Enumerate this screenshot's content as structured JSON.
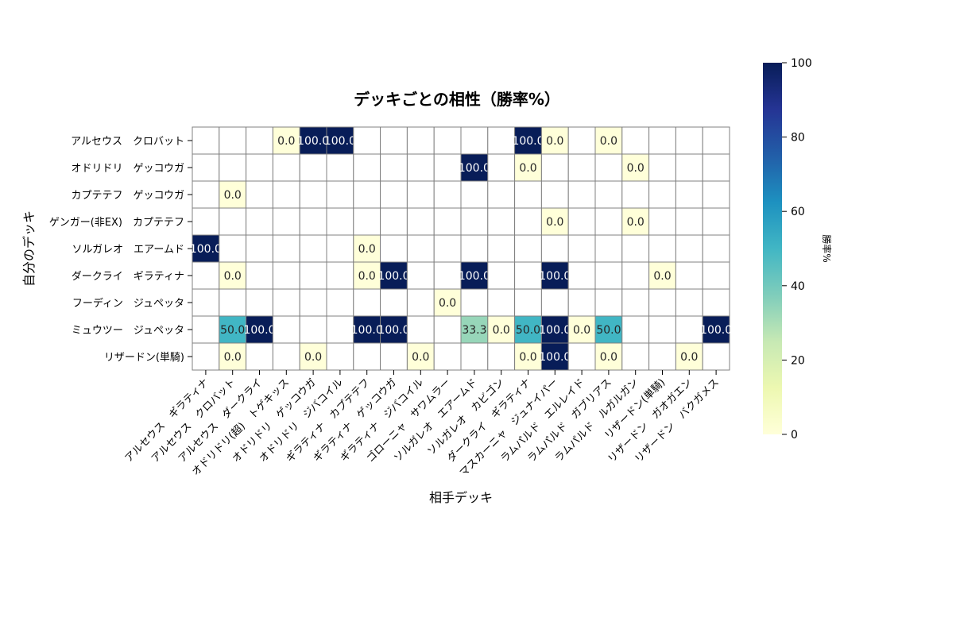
{
  "chart_data": {
    "type": "heatmap",
    "title": "デッキごとの相性（勝率%）",
    "xlabel": "相手デッキ",
    "ylabel": "自分のデッキ",
    "rows": [
      "アルセウス　クロバット",
      "オドリドリ　ゲッコウガ",
      "カプテテフ　ゲッコウガ",
      "ゲンガー(非EX)　カプテテフ",
      "ソルガレオ　エアームド",
      "ダークライ　ギラティナ",
      "フーディン　ジュペッタ",
      "ミュウツー　ジュペッタ",
      "リザードン(単騎)"
    ],
    "columns": [
      "アルセウス　ギラティナ",
      "アルセウス　クロバット",
      "アルセウス　ダークライ",
      "オドリドリ(超)　トゲキッス",
      "オドリドリ　ゲッコウガ",
      "オドリドリ　ジバコイル",
      "ギラティナ　カプテテフ",
      "ギラティナ　ゲッコウガ",
      "ギラティナ　ジバコイル",
      "ゴローニャ　サワムラー",
      "ソルガレオ　エアームド",
      "ソルガレオ　カビゴン",
      "ダークライ　ギラティナ",
      "マスカーニャ　ジュナイパー",
      "ラムパルド　エルレイド",
      "ラムパルド　ガブリアス",
      "ラムパルド　ルガルガン",
      "リザードン(単騎)",
      "リザードン　ガオガエン",
      "リザードン　バクガメス"
    ],
    "values": [
      [
        null,
        null,
        null,
        0.0,
        100.0,
        100.0,
        null,
        null,
        null,
        null,
        null,
        null,
        100.0,
        0.0,
        null,
        0.0,
        null,
        null,
        null,
        null
      ],
      [
        null,
        null,
        null,
        null,
        null,
        null,
        null,
        null,
        null,
        null,
        100.0,
        null,
        0.0,
        null,
        null,
        null,
        0.0,
        null,
        null,
        null
      ],
      [
        null,
        0.0,
        null,
        null,
        null,
        null,
        null,
        null,
        null,
        null,
        null,
        null,
        null,
        null,
        null,
        null,
        null,
        null,
        null,
        null
      ],
      [
        null,
        null,
        null,
        null,
        null,
        null,
        null,
        null,
        null,
        null,
        null,
        null,
        null,
        0.0,
        null,
        null,
        0.0,
        null,
        null,
        null
      ],
      [
        100.0,
        null,
        null,
        null,
        null,
        null,
        0.0,
        null,
        null,
        null,
        null,
        null,
        null,
        null,
        null,
        null,
        null,
        null,
        null,
        null
      ],
      [
        null,
        0.0,
        null,
        null,
        null,
        null,
        0.0,
        100.0,
        null,
        null,
        100.0,
        null,
        null,
        100.0,
        null,
        null,
        null,
        0.0,
        null,
        null
      ],
      [
        null,
        null,
        null,
        null,
        null,
        null,
        null,
        null,
        null,
        0.0,
        null,
        null,
        null,
        null,
        null,
        null,
        null,
        null,
        null,
        null
      ],
      [
        null,
        50.0,
        100.0,
        null,
        null,
        null,
        100.0,
        100.0,
        null,
        null,
        33.3,
        0.0,
        50.0,
        100.0,
        0.0,
        50.0,
        null,
        null,
        null,
        100.0
      ],
      [
        null,
        0.0,
        null,
        null,
        0.0,
        null,
        null,
        null,
        0.0,
        null,
        null,
        null,
        0.0,
        100.0,
        null,
        0.0,
        null,
        null,
        0.0,
        null
      ]
    ],
    "colorbar": {
      "label": "勝率%",
      "ticks": [
        "0",
        "20",
        "40",
        "60",
        "80",
        "100"
      ],
      "min": 0,
      "max": 100,
      "colormap": "YlGnBu",
      "stops": [
        "#ffffd9",
        "#edf8b1",
        "#c7e9b4",
        "#7fcdbb",
        "#41b6c4",
        "#1d91c0",
        "#225ea8",
        "#253494",
        "#081d58"
      ]
    },
    "grid": true,
    "gridline_color": "#808080"
  }
}
